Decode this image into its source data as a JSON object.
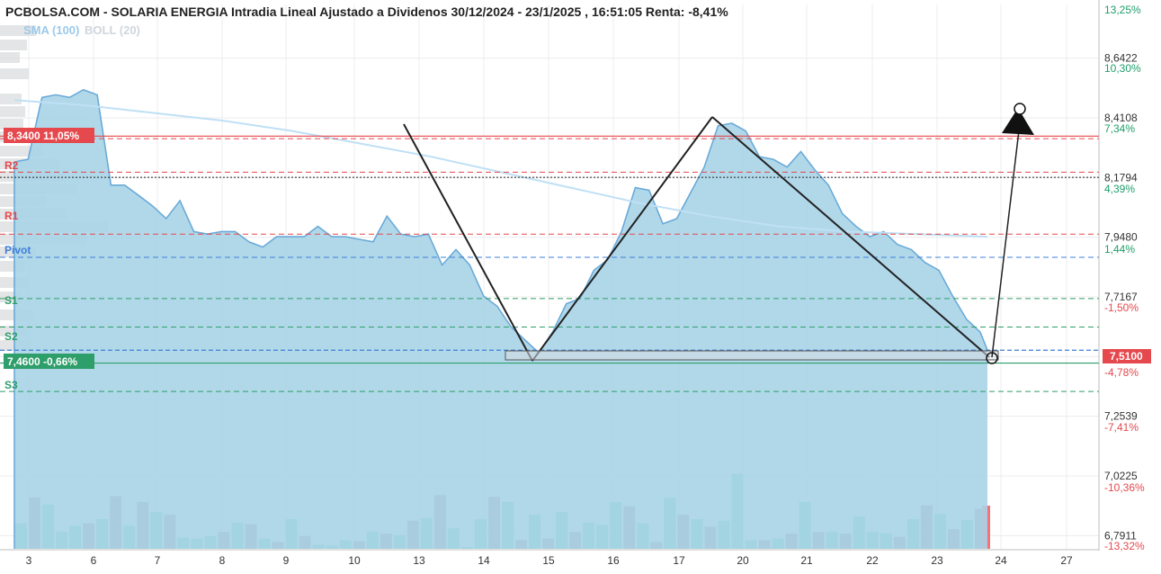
{
  "title": "PCBOLSA.COM - SOLARIA ENERGIA Intradia Lineal Ajustado a Dividenos 30/12/2024 - 23/1/2025 , 16:51:05 Renta: -8,41%",
  "legend": {
    "sma": "SMA (100)",
    "boll": "BOLL (20)"
  },
  "colors": {
    "area_fill": "#a9d4e7",
    "area_line": "#6aaad8",
    "sma_line": "#bfe0f5",
    "vol_up": "#6ccfb6",
    "vol_down": "#b08a9c",
    "vol_last": "#f2727a",
    "red_line": "#e5484d",
    "green_line": "#2e9e6a",
    "blue_dash": "#3f7fd8",
    "grid": "#ececec",
    "drawing": "#222222"
  },
  "y_axis": {
    "price_ticks": [
      "8,6422",
      "8,4108",
      "8,1794",
      "7,9480",
      "7,7167",
      "7,4853",
      "7,2539",
      "7,0225",
      "6,7911"
    ],
    "pct_ticks": [
      {
        "label": "13,25%",
        "sign": "pos"
      },
      {
        "label": "10,30%",
        "sign": "pos"
      },
      {
        "label": "7,34%",
        "sign": "pos"
      },
      {
        "label": "4,39%",
        "sign": "pos"
      },
      {
        "label": "1,44%",
        "sign": "pos"
      },
      {
        "label": "-1,50%",
        "sign": "neg"
      },
      {
        "label": "-4,78%",
        "sign": "neg"
      },
      {
        "label": "-7,41%",
        "sign": "neg"
      },
      {
        "label": "-10,36%",
        "sign": "neg"
      },
      {
        "label": "-13,32%",
        "sign": "neg"
      }
    ],
    "current_price_tag": "7,5100"
  },
  "x_axis": {
    "labels": [
      "3",
      "6",
      "7",
      "8",
      "9",
      "10",
      "13",
      "14",
      "15",
      "16",
      "17",
      "20",
      "21",
      "22",
      "23",
      "24",
      "27"
    ]
  },
  "levels": {
    "high_tag": "8,3400  11,05%",
    "low_tag": "7,4600  -0,66%",
    "r2": "R2",
    "r1": "R1",
    "pivot": "Pivot",
    "s1": "S1",
    "s2": "S2",
    "s3": "S3"
  },
  "chart_data": {
    "type": "area",
    "title": "PCBOLSA.COM - SOLARIA ENERGIA Intradia Lineal Ajustado a Dividenos 30/12/2024 - 23/1/2025 , 16:51:05 Renta: -8,41%",
    "x_dates": [
      "3",
      "6",
      "7",
      "8",
      "9",
      "10",
      "13",
      "14",
      "15",
      "16",
      "17",
      "20",
      "21",
      "22",
      "23"
    ],
    "price_series": {
      "name": "SOLARIA ENERGIA",
      "values": [
        8.24,
        8.25,
        8.49,
        8.5,
        8.49,
        8.52,
        8.5,
        8.15,
        8.15,
        8.11,
        8.07,
        8.02,
        8.09,
        7.97,
        7.96,
        7.97,
        7.97,
        7.93,
        7.91,
        7.95,
        7.95,
        7.95,
        7.99,
        7.95,
        7.95,
        7.94,
        7.93,
        8.03,
        7.96,
        7.95,
        7.96,
        7.84,
        7.9,
        7.84,
        7.72,
        7.68,
        7.6,
        7.55,
        7.5,
        7.58,
        7.69,
        7.71,
        7.82,
        7.86,
        7.97,
        8.14,
        8.13,
        8.0,
        8.02,
        8.12,
        8.22,
        8.38,
        8.39,
        8.36,
        8.26,
        8.25,
        8.22,
        8.28,
        8.21,
        8.15,
        8.04,
        7.99,
        7.95,
        7.97,
        7.92,
        7.9,
        7.85,
        7.82,
        7.72,
        7.63,
        7.58
      ],
      "last": 7.51
    },
    "sma_100": {
      "name": "SMA (100)",
      "values": [
        8.48,
        8.46,
        8.43,
        8.4,
        8.36,
        8.31,
        8.26,
        8.2,
        8.14,
        8.08,
        8.03,
        7.99,
        7.97,
        7.96,
        7.95
      ]
    },
    "volume": {
      "values": [
        30,
        60,
        52,
        20,
        27,
        30,
        35,
        62,
        27,
        55,
        43,
        40,
        13,
        12,
        15,
        20,
        31,
        29,
        12,
        8,
        35,
        15,
        5,
        4,
        10,
        9,
        20,
        18,
        16,
        33,
        36,
        63,
        24,
        2,
        35,
        61,
        55,
        10,
        40,
        12,
        43,
        20,
        31,
        28,
        55,
        50,
        30,
        8,
        60,
        40,
        35,
        26,
        33,
        88,
        10,
        10,
        12,
        18,
        55,
        20,
        20,
        18,
        38,
        20,
        18,
        14,
        35,
        51,
        41,
        23,
        34,
        47
      ],
      "last_bar_down": true
    },
    "levels": {
      "high": 8.34,
      "high_pct": "11,05%",
      "resistance_dashed": 8.33,
      "r2": 8.2,
      "black_dotted": 8.18,
      "r1": 7.96,
      "pivot": 7.87,
      "s1": 7.71,
      "s2": 7.6,
      "current_dashed": 7.51,
      "low": 7.46,
      "low_pct": "-0,66%",
      "s3": 7.35
    },
    "ylim": [
      6.75,
      8.75
    ],
    "grid": true
  }
}
